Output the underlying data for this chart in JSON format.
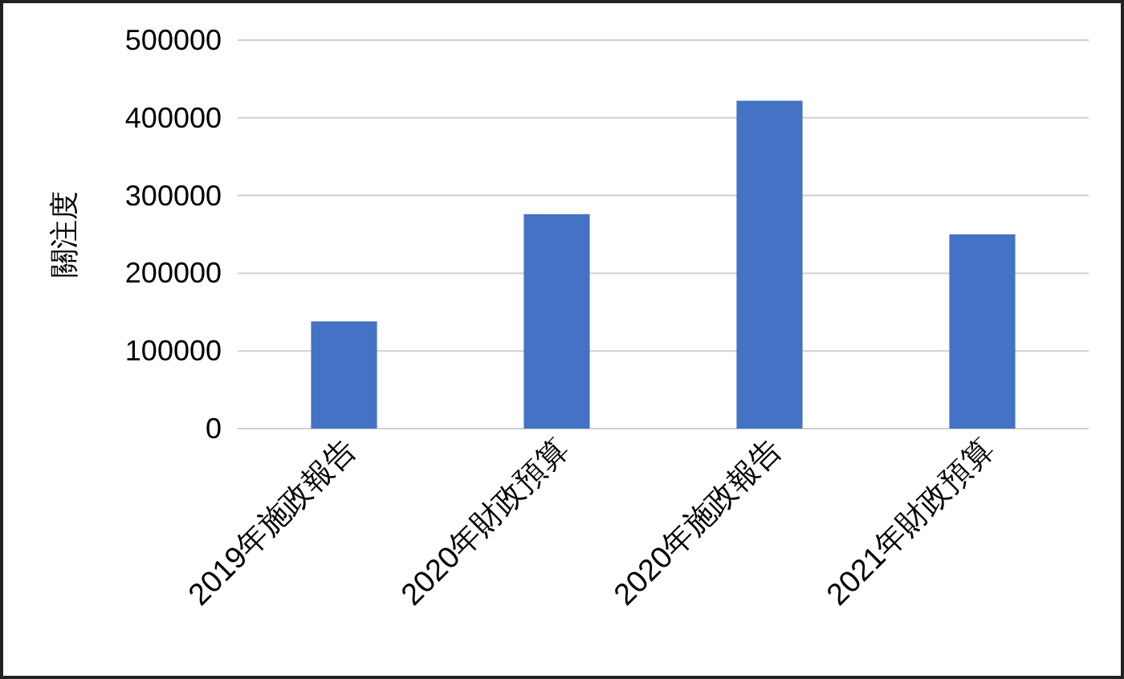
{
  "chart_data": {
    "type": "bar",
    "ylabel": "關注度",
    "categories": [
      "2019年施政報告",
      "2020年財政預算",
      "2020年施政報告",
      "2021年財政預算"
    ],
    "values": [
      138000,
      276000,
      422000,
      250000
    ],
    "color": "#4472c4",
    "ylim": [
      0,
      500000
    ],
    "yticks": [
      0,
      100000,
      200000,
      300000,
      400000,
      500000
    ],
    "grid": "y"
  }
}
